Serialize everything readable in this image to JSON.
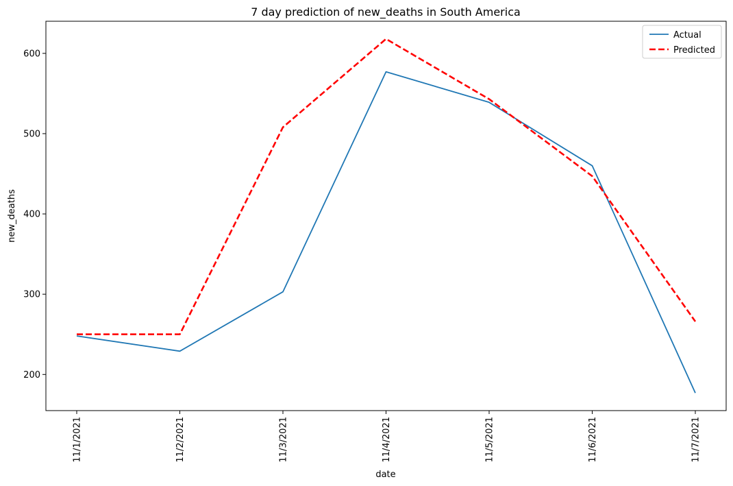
{
  "chart_data": {
    "type": "line",
    "title": "7 day prediction of new_deaths in South America",
    "xlabel": "date",
    "ylabel": "new_deaths",
    "categories": [
      "11/1/2021",
      "11/2/2021",
      "11/3/2021",
      "11/4/2021",
      "11/5/2021",
      "11/6/2021",
      "11/7/2021"
    ],
    "ylim": [
      155,
      640
    ],
    "yticks": [
      200,
      300,
      400,
      500,
      600
    ],
    "grid": false,
    "legend_position": "top-right",
    "series": [
      {
        "name": "Actual",
        "color": "#1f77b4",
        "style": "solid",
        "values": [
          248,
          229,
          303,
          577,
          539,
          460,
          177
        ]
      },
      {
        "name": "Predicted",
        "color": "#ff0000",
        "style": "dashed",
        "values": [
          250,
          250,
          508,
          618,
          543,
          447,
          266
        ]
      }
    ]
  }
}
